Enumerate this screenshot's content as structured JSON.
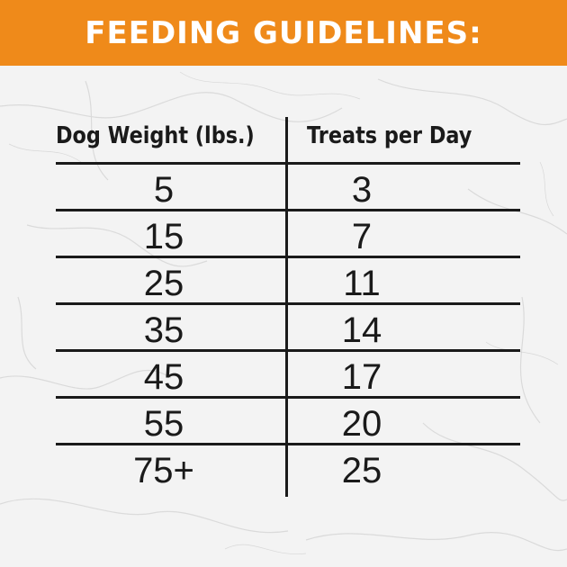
{
  "colors": {
    "banner": "#ef8a1a",
    "banner_text": "#ffffff",
    "table_text": "#1a1a1a",
    "background": "#f4f4f4"
  },
  "banner": {
    "title": "FEEDING GUIDELINES:"
  },
  "table": {
    "headers": [
      "Dog Weight (lbs.)",
      "Treats per Day"
    ],
    "rows": [
      {
        "weight": "5",
        "treats": "3"
      },
      {
        "weight": "15",
        "treats": "7"
      },
      {
        "weight": "25",
        "treats": "11"
      },
      {
        "weight": "35",
        "treats": "14"
      },
      {
        "weight": "45",
        "treats": "17"
      },
      {
        "weight": "55",
        "treats": "20"
      },
      {
        "weight": "75+",
        "treats": "25"
      }
    ]
  }
}
